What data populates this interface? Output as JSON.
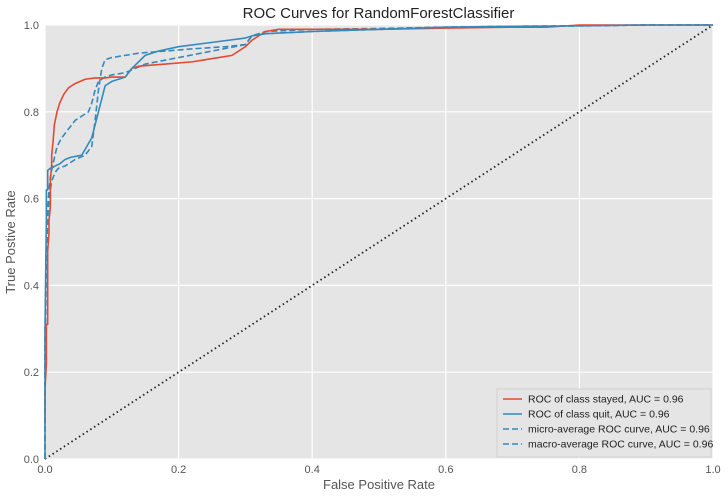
{
  "chart_data": {
    "type": "line",
    "title": "ROC Curves for RandomForestClassifier",
    "xlabel": "False Positive Rate",
    "ylabel": "True Postive Rate",
    "xlim": [
      0,
      1
    ],
    "ylim": [
      0,
      1
    ],
    "xticks": [
      "0.0",
      "0.2",
      "0.4",
      "0.6",
      "0.8",
      "1.0"
    ],
    "yticks": [
      "0.0",
      "0.2",
      "0.4",
      "0.6",
      "0.8",
      "1.0"
    ],
    "grid": true,
    "legend_position": "lower-right",
    "series": [
      {
        "name": "ROC of class stayed, AUC = 0.96",
        "color": "#e24a33",
        "dash": "solid",
        "x": [
          0,
          0.0,
          0.002,
          0.002,
          0.004,
          0.004,
          0.006,
          0.006,
          0.008,
          0.008,
          0.01,
          0.01,
          0.012,
          0.014,
          0.018,
          0.022,
          0.028,
          0.035,
          0.045,
          0.06,
          0.075,
          0.09,
          0.1,
          0.12,
          0.13,
          0.14,
          0.18,
          0.22,
          0.24,
          0.26,
          0.28,
          0.3,
          0.31,
          0.33,
          0.35,
          0.4,
          0.5,
          0.6,
          0.7,
          0.75,
          0.8,
          0.9,
          1.0
        ],
        "y": [
          0.08,
          0.16,
          0.22,
          0.31,
          0.31,
          0.48,
          0.52,
          0.55,
          0.58,
          0.64,
          0.68,
          0.7,
          0.73,
          0.77,
          0.8,
          0.82,
          0.84,
          0.855,
          0.865,
          0.875,
          0.878,
          0.878,
          0.88,
          0.88,
          0.9,
          0.905,
          0.91,
          0.915,
          0.92,
          0.925,
          0.93,
          0.95,
          0.965,
          0.985,
          0.99,
          0.99,
          0.99,
          0.993,
          0.995,
          0.995,
          1.0,
          1.0,
          1.0
        ]
      },
      {
        "name": "ROC of class quit, AUC = 0.96",
        "color": "#348abd",
        "dash": "solid",
        "x": [
          0,
          0.0,
          0.002,
          0.002,
          0.004,
          0.004,
          0.008,
          0.012,
          0.015,
          0.022,
          0.03,
          0.038,
          0.055,
          0.07,
          0.08,
          0.085,
          0.09,
          0.1,
          0.12,
          0.13,
          0.15,
          0.17,
          0.2,
          0.25,
          0.3,
          0.31,
          0.33,
          0.4,
          0.5,
          0.6,
          0.7,
          0.8,
          0.9,
          0.92,
          1.0
        ],
        "y": [
          0.0,
          0.3,
          0.55,
          0.62,
          0.62,
          0.665,
          0.67,
          0.672,
          0.675,
          0.68,
          0.69,
          0.695,
          0.7,
          0.74,
          0.8,
          0.83,
          0.86,
          0.87,
          0.88,
          0.9,
          0.93,
          0.94,
          0.95,
          0.96,
          0.97,
          0.975,
          0.98,
          0.985,
          0.99,
          0.995,
          0.997,
          0.998,
          1.0,
          1.0,
          1.0
        ]
      },
      {
        "name": "micro-average ROC curve, AUC = 0.96",
        "color": "#348abd",
        "dash": "dashed",
        "x": [
          0,
          0.0,
          0.002,
          0.004,
          0.006,
          0.008,
          0.012,
          0.018,
          0.025,
          0.035,
          0.045,
          0.055,
          0.065,
          0.07,
          0.075,
          0.08,
          0.085,
          0.09,
          0.1,
          0.12,
          0.15,
          0.2,
          0.25,
          0.3,
          0.31,
          0.33,
          0.4,
          0.5,
          0.6,
          0.7,
          0.8,
          0.9,
          1.0
        ],
        "y": [
          0.0,
          0.28,
          0.48,
          0.58,
          0.62,
          0.65,
          0.68,
          0.72,
          0.74,
          0.76,
          0.78,
          0.79,
          0.8,
          0.82,
          0.85,
          0.87,
          0.875,
          0.88,
          0.885,
          0.89,
          0.91,
          0.925,
          0.94,
          0.955,
          0.975,
          0.98,
          0.985,
          0.99,
          0.995,
          0.997,
          0.998,
          1.0,
          1.0
        ]
      },
      {
        "name": "macro-average ROC curve, AUC = 0.96",
        "color": "#348abd",
        "dash": "dashed",
        "x": [
          0,
          0.0,
          0.002,
          0.004,
          0.006,
          0.01,
          0.015,
          0.02,
          0.03,
          0.045,
          0.06,
          0.07,
          0.075,
          0.08,
          0.085,
          0.09,
          0.1,
          0.12,
          0.14,
          0.18,
          0.22,
          0.27,
          0.3,
          0.31,
          0.33,
          0.4,
          0.5,
          0.6,
          0.7,
          0.8,
          0.9,
          1.0
        ],
        "y": [
          0.0,
          0.25,
          0.44,
          0.55,
          0.6,
          0.64,
          0.66,
          0.67,
          0.675,
          0.69,
          0.7,
          0.72,
          0.78,
          0.85,
          0.9,
          0.92,
          0.925,
          0.93,
          0.935,
          0.94,
          0.945,
          0.95,
          0.955,
          0.975,
          0.985,
          0.99,
          0.992,
          0.995,
          0.997,
          0.998,
          1.0,
          1.0
        ]
      }
    ],
    "reference_line": {
      "x": [
        0,
        1
      ],
      "y": [
        0,
        1
      ],
      "color": "#222222",
      "dash": "dotted"
    }
  }
}
